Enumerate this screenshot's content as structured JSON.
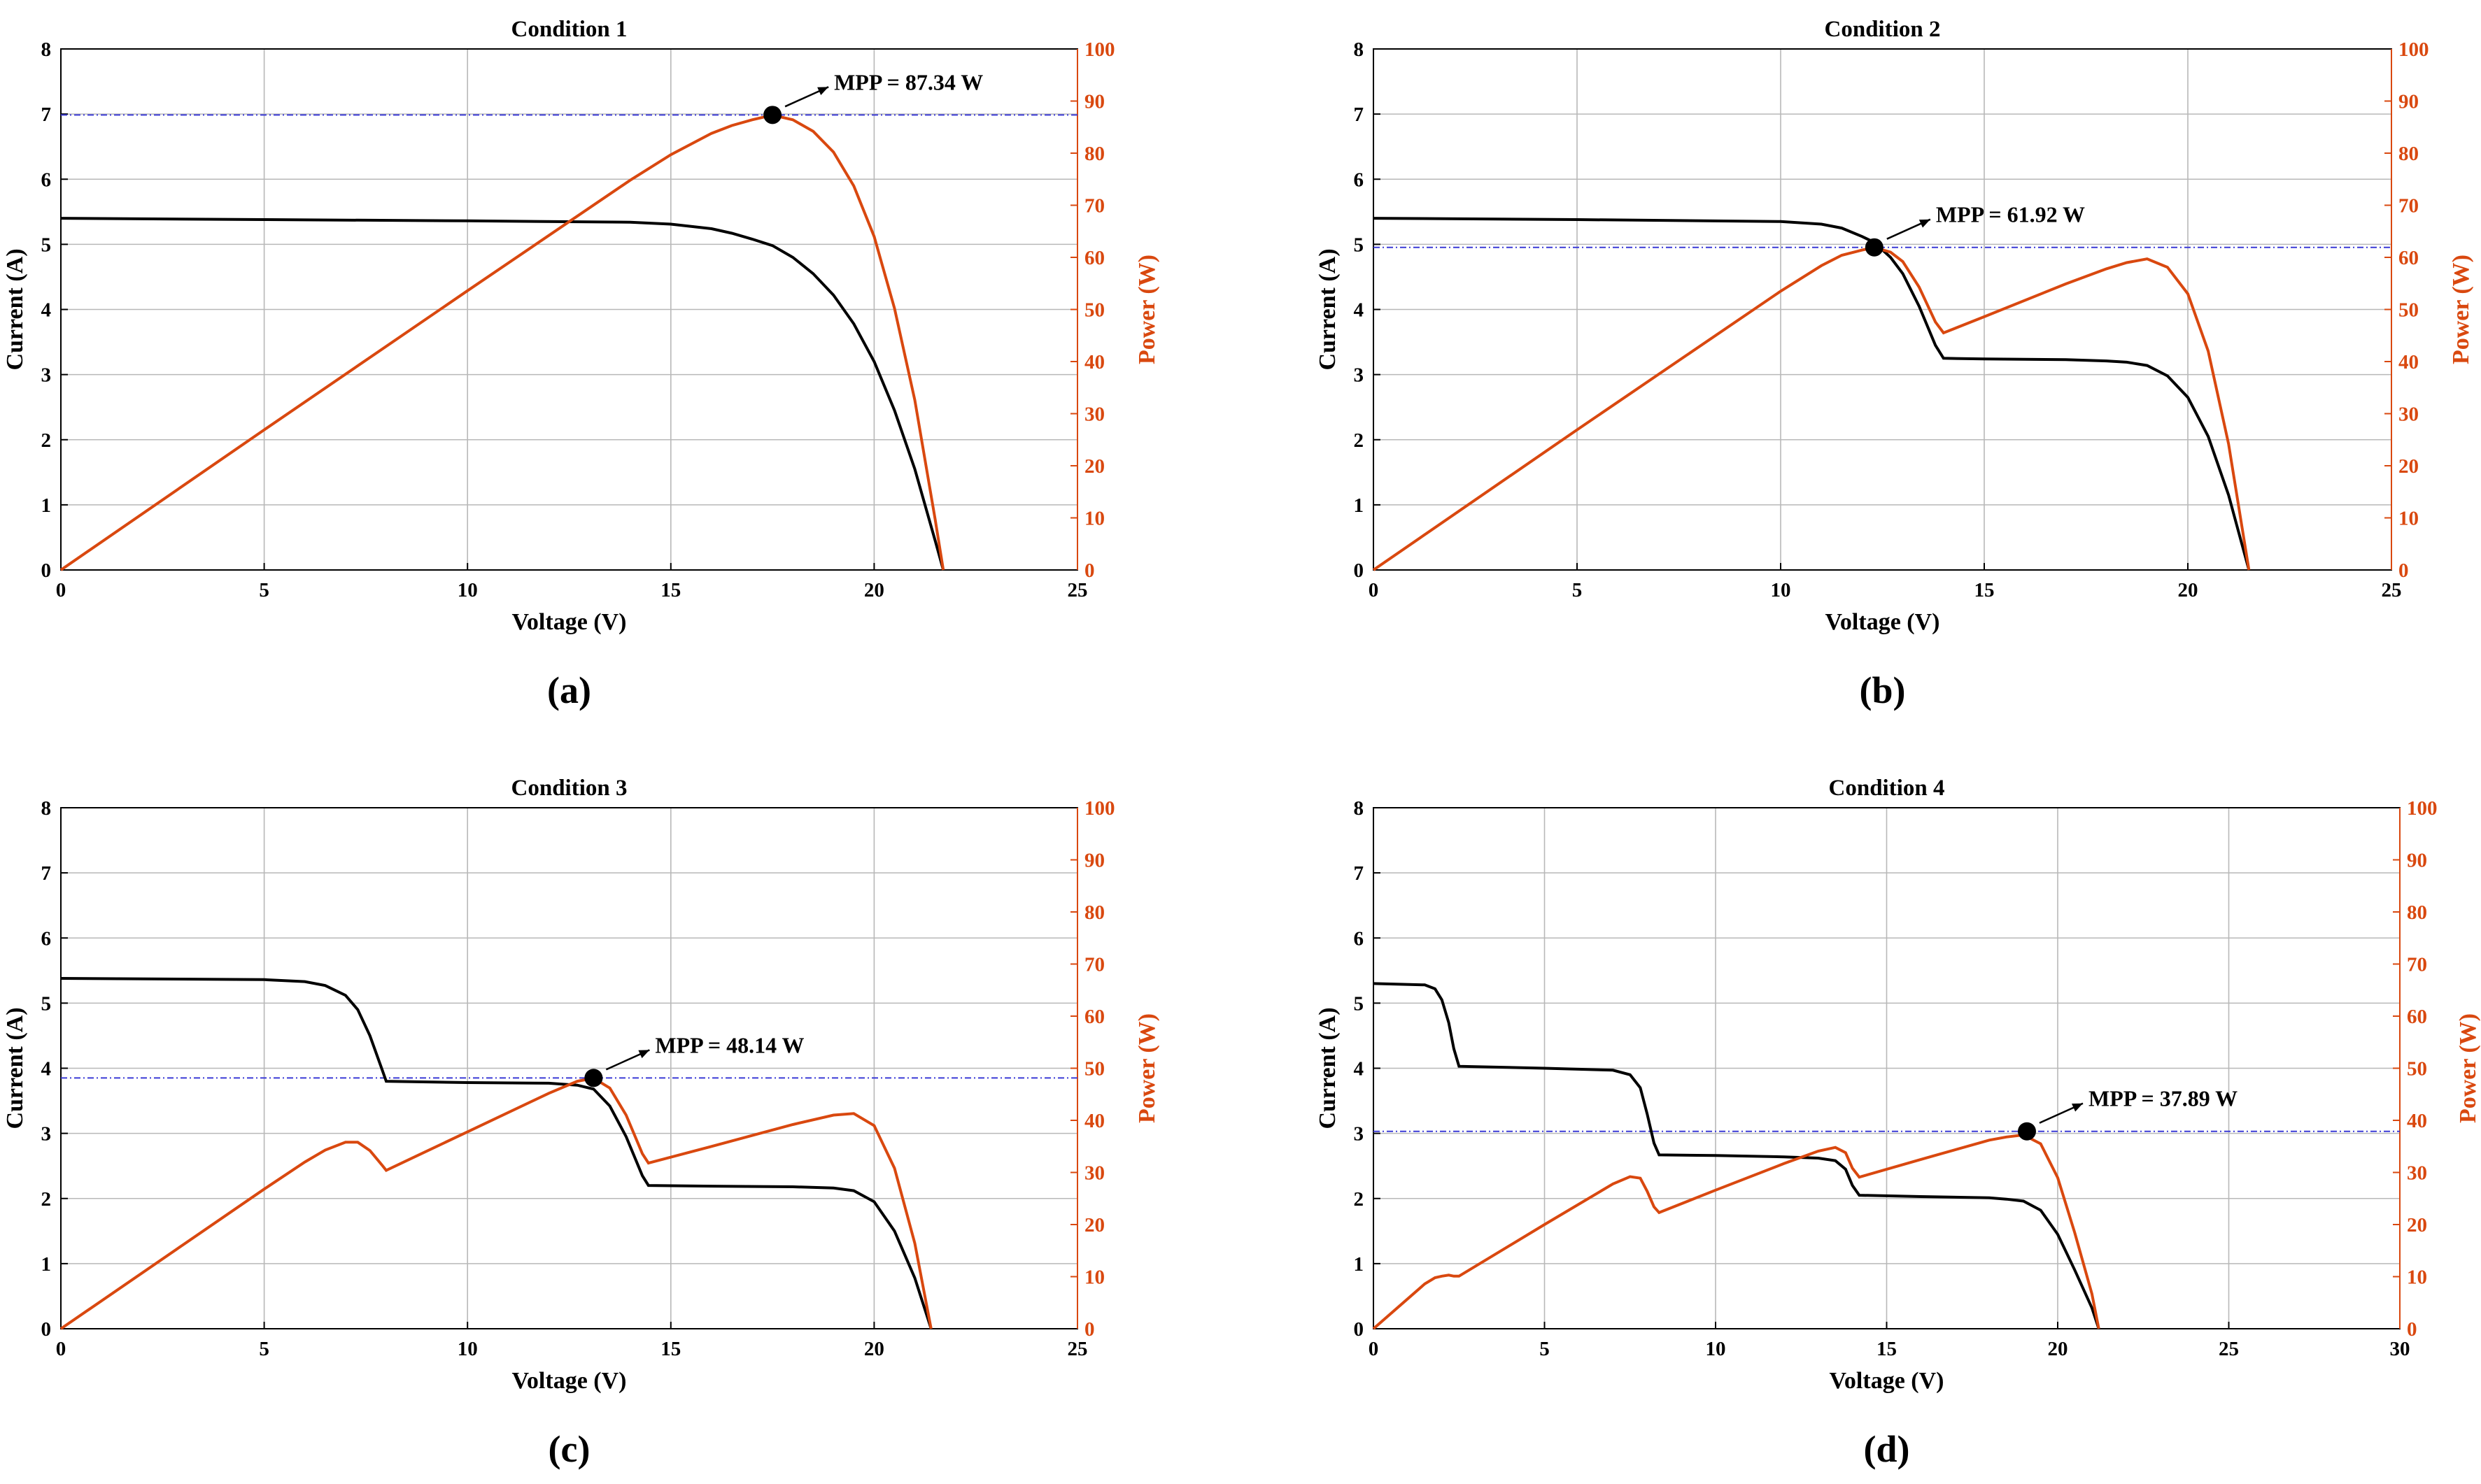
{
  "chart_data": [
    {
      "type": "line",
      "title": "Condition 1",
      "panel_label": "(a)",
      "xlabel": "Voltage (V)",
      "ylabel": "Current (A)",
      "y2label": "Power (W)",
      "xlim": [
        0,
        25
      ],
      "ylim": [
        0,
        8
      ],
      "y2lim": [
        0,
        100
      ],
      "xticks": [
        "0",
        "5",
        "10",
        "15",
        "20",
        "25"
      ],
      "yticks": [
        "0",
        "1",
        "2",
        "3",
        "4",
        "5",
        "6",
        "7",
        "8"
      ],
      "y2ticks": [
        "0",
        "10",
        "20",
        "30",
        "40",
        "50",
        "60",
        "70",
        "80",
        "90",
        "100"
      ],
      "grid": true,
      "mpp": {
        "label": "MPP = 87.34 W",
        "voltage": 17.5,
        "power": 87.34
      },
      "series": [
        {
          "name": "Current",
          "axis": "left",
          "color": "#000000",
          "x": [
            0,
            5,
            10,
            14,
            15,
            16,
            16.5,
            17,
            17.5,
            18,
            18.5,
            19,
            19.5,
            20,
            20.5,
            21,
            21.5,
            21.7
          ],
          "y": [
            5.4,
            5.38,
            5.36,
            5.34,
            5.31,
            5.24,
            5.17,
            5.08,
            4.98,
            4.8,
            4.55,
            4.22,
            3.78,
            3.2,
            2.45,
            1.55,
            0.45,
            0
          ]
        },
        {
          "name": "Power",
          "axis": "right",
          "color": "#d9480f",
          "x": [
            0,
            5,
            10,
            14,
            15,
            16,
            16.5,
            17,
            17.5,
            18,
            18.5,
            19,
            19.5,
            20,
            20.5,
            21,
            21.5,
            21.7
          ],
          "y": [
            0,
            26.9,
            53.6,
            74.8,
            79.7,
            83.8,
            85.3,
            86.4,
            87.3,
            86.4,
            84.2,
            80.2,
            73.7,
            64.0,
            50.2,
            32.6,
            9.7,
            0
          ]
        }
      ]
    },
    {
      "type": "line",
      "title": "Condition 2",
      "panel_label": "(b)",
      "xlabel": "Voltage (V)",
      "ylabel": "Current (A)",
      "y2label": "Power (W)",
      "xlim": [
        0,
        25
      ],
      "ylim": [
        0,
        8
      ],
      "y2lim": [
        0,
        100
      ],
      "xticks": [
        "0",
        "5",
        "10",
        "15",
        "20",
        "25"
      ],
      "yticks": [
        "0",
        "1",
        "2",
        "3",
        "4",
        "5",
        "6",
        "7",
        "8"
      ],
      "y2ticks": [
        "0",
        "10",
        "20",
        "30",
        "40",
        "50",
        "60",
        "70",
        "80",
        "90",
        "100"
      ],
      "grid": true,
      "mpp": {
        "label": "MPP = 61.92 W",
        "voltage": 12.3,
        "power": 61.92
      },
      "series": [
        {
          "name": "Current",
          "axis": "left",
          "color": "#000000",
          "x": [
            0,
            5,
            10,
            11,
            11.5,
            12,
            12.3,
            12.7,
            13.0,
            13.4,
            13.8,
            14.0,
            15,
            17,
            18,
            18.5,
            19,
            19.5,
            20,
            20.5,
            21,
            21.5
          ],
          "y": [
            5.4,
            5.38,
            5.35,
            5.31,
            5.25,
            5.12,
            5.03,
            4.8,
            4.55,
            4.05,
            3.45,
            3.25,
            3.24,
            3.23,
            3.21,
            3.19,
            3.14,
            2.98,
            2.65,
            2.05,
            1.15,
            0
          ]
        },
        {
          "name": "Power",
          "axis": "right",
          "color": "#d9480f",
          "x": [
            0,
            5,
            10,
            11,
            11.5,
            12,
            12.3,
            12.7,
            13.0,
            13.4,
            13.8,
            14.0,
            15,
            17,
            18,
            18.5,
            19,
            19.5,
            20,
            20.5,
            21,
            21.5
          ],
          "y": [
            0,
            26.9,
            53.5,
            58.4,
            60.4,
            61.4,
            61.9,
            61.0,
            59.2,
            54.3,
            47.6,
            45.5,
            48.6,
            54.9,
            57.8,
            59.0,
            59.7,
            58.1,
            53.0,
            42.0,
            24.2,
            0
          ]
        }
      ]
    },
    {
      "type": "line",
      "title": "Condition 3",
      "panel_label": "(c)",
      "xlabel": "Voltage (V)",
      "ylabel": "Current (A)",
      "y2label": "Power (W)",
      "xlim": [
        0,
        25
      ],
      "ylim": [
        0,
        8
      ],
      "y2lim": [
        0,
        100
      ],
      "xticks": [
        "0",
        "5",
        "10",
        "15",
        "20",
        "25"
      ],
      "yticks": [
        "0",
        "1",
        "2",
        "3",
        "4",
        "5",
        "6",
        "7",
        "8"
      ],
      "y2ticks": [
        "0",
        "10",
        "20",
        "30",
        "40",
        "50",
        "60",
        "70",
        "80",
        "90",
        "100"
      ],
      "grid": true,
      "mpp": {
        "label": "MPP = 48.14 W",
        "voltage": 13.1,
        "power": 48.14
      },
      "series": [
        {
          "name": "Current",
          "axis": "left",
          "color": "#000000",
          "x": [
            0,
            5,
            6,
            6.5,
            7,
            7.3,
            7.6,
            7.9,
            8.0,
            10,
            12,
            12.7,
            13.1,
            13.5,
            13.9,
            14.3,
            14.45,
            16,
            18,
            19,
            19.5,
            20,
            20.5,
            21,
            21.4
          ],
          "y": [
            5.38,
            5.36,
            5.33,
            5.27,
            5.12,
            4.9,
            4.5,
            3.98,
            3.8,
            3.78,
            3.77,
            3.74,
            3.68,
            3.42,
            2.95,
            2.35,
            2.2,
            2.19,
            2.18,
            2.16,
            2.12,
            1.95,
            1.5,
            0.78,
            0
          ]
        },
        {
          "name": "Power",
          "axis": "right",
          "color": "#d9480f",
          "x": [
            0,
            5,
            6,
            6.5,
            7,
            7.3,
            7.6,
            7.9,
            8.0,
            10,
            12,
            12.7,
            13.1,
            13.5,
            13.9,
            14.3,
            14.45,
            16,
            18,
            19,
            19.5,
            20,
            20.5,
            21,
            21.4
          ],
          "y": [
            0,
            26.8,
            32.0,
            34.3,
            35.8,
            35.8,
            34.2,
            31.4,
            30.4,
            37.8,
            45.2,
            47.5,
            48.1,
            46.2,
            41.0,
            33.6,
            31.8,
            35.0,
            39.2,
            41.0,
            41.3,
            39.0,
            30.8,
            16.4,
            0
          ]
        }
      ]
    },
    {
      "type": "line",
      "title": "Condition 4",
      "panel_label": "(d)",
      "xlabel": "Voltage (V)",
      "ylabel": "Current (A)",
      "y2label": "Power (W)",
      "xlim": [
        0,
        30
      ],
      "ylim": [
        0,
        8
      ],
      "y2lim": [
        0,
        100
      ],
      "xticks": [
        "0",
        "5",
        "10",
        "15",
        "20",
        "25",
        "30"
      ],
      "yticks": [
        "0",
        "1",
        "2",
        "3",
        "4",
        "5",
        "6",
        "7",
        "8"
      ],
      "y2ticks": [
        "0",
        "10",
        "20",
        "30",
        "40",
        "50",
        "60",
        "70",
        "80",
        "90",
        "100"
      ],
      "grid": true,
      "mpp": {
        "label": "MPP = 37.89 W",
        "voltage": 19.1,
        "power": 37.89
      },
      "series": [
        {
          "name": "Current",
          "axis": "left",
          "color": "#000000",
          "x": [
            0,
            1.5,
            1.8,
            2.0,
            2.2,
            2.35,
            2.5,
            5,
            7,
            7.5,
            7.8,
            8.0,
            8.2,
            8.35,
            10,
            12,
            13,
            13.5,
            13.8,
            14.0,
            14.2,
            16,
            18,
            18.5,
            19.0,
            19.5,
            20,
            20.5,
            21.0,
            21.2
          ],
          "y": [
            5.3,
            5.28,
            5.22,
            5.05,
            4.7,
            4.3,
            4.03,
            4.0,
            3.97,
            3.9,
            3.7,
            3.3,
            2.85,
            2.67,
            2.66,
            2.64,
            2.62,
            2.58,
            2.45,
            2.2,
            2.05,
            2.03,
            2.01,
            1.99,
            1.96,
            1.82,
            1.45,
            0.9,
            0.32,
            0
          ]
        },
        {
          "name": "Power",
          "axis": "right",
          "color": "#d9480f",
          "x": [
            0,
            1.5,
            1.8,
            2.0,
            2.2,
            2.35,
            2.5,
            5,
            7,
            7.5,
            7.8,
            8.0,
            8.2,
            8.35,
            10,
            12,
            13,
            13.5,
            13.8,
            14.0,
            14.2,
            16,
            18,
            18.5,
            19.0,
            19.5,
            20,
            20.5,
            21.0,
            21.2
          ],
          "y": [
            0,
            8.6,
            9.8,
            10.1,
            10.3,
            10.1,
            10.1,
            20.0,
            27.8,
            29.2,
            28.9,
            26.4,
            23.4,
            22.3,
            26.6,
            31.7,
            34.1,
            34.8,
            33.8,
            30.8,
            29.1,
            32.5,
            36.2,
            36.8,
            37.2,
            35.5,
            29.0,
            18.4,
            6.7,
            0
          ]
        }
      ]
    }
  ]
}
